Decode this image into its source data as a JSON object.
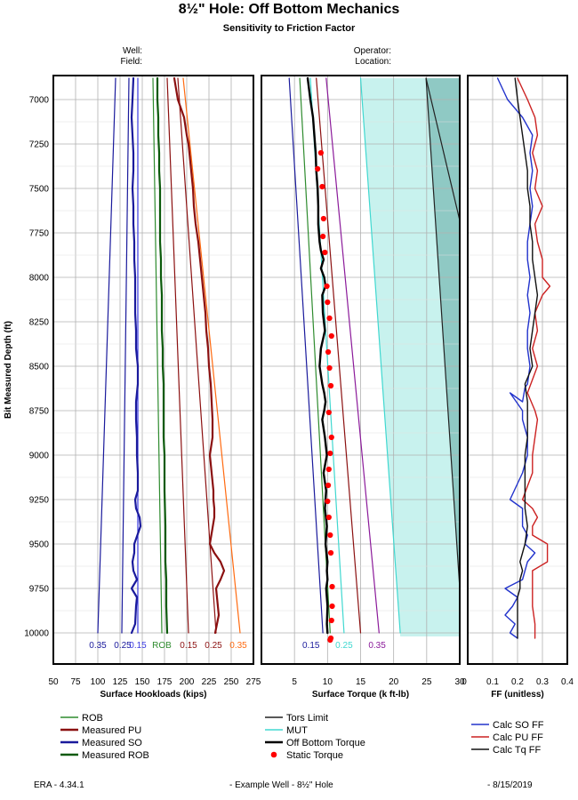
{
  "title": "8½\" Hole: Off Bottom Mechanics",
  "subtitle": "Sensitivity to Friction Factor",
  "header": {
    "well_label": "Well:",
    "field_label": "Field:",
    "operator_label": "Operator:",
    "location_label": "Location:"
  },
  "footer": {
    "left": "ERA - 4.34.1",
    "center": "- Example Well - 8½\" Hole",
    "right": "- 8/15/2019"
  },
  "colors": {
    "rob": "#2e8b2e",
    "measured_pu": "#8b1010",
    "measured_so": "#1a1a9c",
    "measured_rob": "#0b5a0b",
    "tors_limit": "#222222",
    "mut": "#40d8d0",
    "mut_fill": "#c8f2ee",
    "tors_fill": "#8fc9c4",
    "off_bottom_torque": "#000000",
    "static_torque": "#ff0000",
    "calc_so_ff": "#2233cc",
    "calc_pu_ff": "#cc2222",
    "calc_tq_ff": "#111111",
    "purple": "#8b1a9a",
    "orange": "#ff6a10",
    "lightblue_ff": "#3a3ae0"
  },
  "chart_data": [
    {
      "type": "line",
      "panel": "hookload",
      "xlabel": "Surface Hookloads (kips)",
      "ylabel": "Bit Measured Depth (ft)",
      "xlim": [
        50,
        275
      ],
      "ylim": [
        6880,
        10080
      ],
      "xticks": [
        "50",
        "75",
        "100",
        "125",
        "150",
        "175",
        "200",
        "225",
        "250",
        "275"
      ],
      "yticks": [
        "7000",
        "7250",
        "7500",
        "7750",
        "8000",
        "8250",
        "8500",
        "8750",
        "9000",
        "9250",
        "9500",
        "9750",
        "10000"
      ],
      "grid": true,
      "curve_labels": [
        {
          "text": "0.35",
          "x": 100,
          "color": "measured_so"
        },
        {
          "text": "0.25",
          "x": 128,
          "color": "measured_so"
        },
        {
          "text": "0.15",
          "x": 145,
          "color": "lightblue_ff"
        },
        {
          "text": "ROB",
          "x": 172,
          "color": "rob"
        },
        {
          "text": "0.15",
          "x": 202,
          "color": "measured_pu"
        },
        {
          "text": "0.25",
          "x": 230,
          "color": "measured_pu"
        },
        {
          "text": "0.35",
          "x": 258,
          "color": "orange"
        }
      ],
      "series": [
        {
          "key": "so_035",
          "color": "measured_so",
          "width": 1.2,
          "x": [
            120,
            100
          ],
          "y": [
            6880,
            10000
          ]
        },
        {
          "key": "so_025",
          "color": "measured_so",
          "width": 1.2,
          "x": [
            135,
            127
          ],
          "y": [
            6880,
            10000
          ]
        },
        {
          "key": "so_015",
          "color": "lightblue_ff",
          "width": 1.2,
          "x": [
            145,
            145
          ],
          "y": [
            6880,
            10000
          ]
        },
        {
          "key": "rob",
          "color": "rob",
          "width": 1.2,
          "x": [
            162,
            172
          ],
          "y": [
            6880,
            10000
          ]
        },
        {
          "key": "pu_015",
          "color": "measured_pu",
          "width": 1.2,
          "x": [
            178,
            202
          ],
          "y": [
            6880,
            10000
          ]
        },
        {
          "key": "pu_025",
          "color": "measured_pu",
          "width": 1.2,
          "x": [
            190,
            233
          ],
          "y": [
            6880,
            10000
          ]
        },
        {
          "key": "pu_035",
          "color": "orange",
          "width": 1.2,
          "x": [
            196,
            260
          ],
          "y": [
            6880,
            10000
          ]
        },
        {
          "key": "measured_so",
          "color": "measured_so",
          "width": 2.2,
          "x": [
            140,
            139,
            138,
            139,
            140,
            140,
            139,
            140,
            140,
            141,
            141,
            142,
            142,
            142,
            143,
            143,
            145,
            145,
            143,
            143,
            144,
            144,
            145,
            145,
            142,
            143,
            147,
            148,
            141,
            141,
            139,
            140,
            144,
            138,
            144,
            143,
            142,
            138
          ],
          "y": [
            6880,
            7000,
            7100,
            7200,
            7300,
            7400,
            7500,
            7600,
            7700,
            7800,
            7900,
            8000,
            8100,
            8200,
            8300,
            8400,
            8500,
            8600,
            8700,
            8800,
            8900,
            9000,
            9100,
            9200,
            9250,
            9300,
            9350,
            9400,
            9500,
            9550,
            9600,
            9650,
            9700,
            9750,
            9800,
            9850,
            9950,
            10000
          ]
        },
        {
          "key": "measured_rob",
          "color": "measured_rob",
          "width": 2.2,
          "x": [
            167,
            167,
            168,
            168,
            169,
            169,
            170,
            170,
            170,
            170,
            171,
            171,
            172,
            172,
            172,
            173,
            173,
            174,
            174,
            174,
            174,
            175,
            175,
            175,
            176,
            176,
            176,
            177,
            177,
            178
          ],
          "y": [
            6880,
            7000,
            7100,
            7200,
            7300,
            7400,
            7500,
            7600,
            7700,
            7800,
            7900,
            8000,
            8100,
            8200,
            8300,
            8400,
            8500,
            8600,
            8700,
            8800,
            8900,
            9000,
            9100,
            9200,
            9400,
            9500,
            9600,
            9700,
            9850,
            10000
          ]
        },
        {
          "key": "measured_pu",
          "color": "measured_pu",
          "width": 2.2,
          "x": [
            186,
            190,
            197,
            200,
            202,
            203,
            205,
            207,
            208,
            210,
            213,
            215,
            217,
            219,
            221,
            222,
            224,
            225,
            227,
            228,
            229,
            229,
            226,
            228,
            230,
            230,
            231,
            231,
            226,
            231,
            238,
            242,
            238,
            233,
            234,
            236,
            232
          ],
          "y": [
            6880,
            7000,
            7100,
            7200,
            7250,
            7300,
            7400,
            7500,
            7600,
            7700,
            7800,
            7900,
            8000,
            8100,
            8200,
            8300,
            8400,
            8500,
            8600,
            8700,
            8800,
            8900,
            9000,
            9100,
            9200,
            9250,
            9300,
            9350,
            9500,
            9550,
            9600,
            9650,
            9700,
            9750,
            9800,
            9900,
            10000
          ]
        }
      ]
    },
    {
      "type": "line",
      "panel": "torque",
      "xlabel": "Surface Torque (k ft-lb)",
      "xlim": [
        0,
        30
      ],
      "ylim": [
        6880,
        10080
      ],
      "xticks": [
        "5",
        "10",
        "15",
        "20",
        "25",
        "30"
      ],
      "grid": true,
      "curve_labels": [
        {
          "text": "0.15",
          "x": 7.5,
          "color": "measured_so"
        },
        {
          "text": "0.25",
          "x": 12.5,
          "color": "mut"
        },
        {
          "text": "0.35",
          "x": 17.5,
          "color": "purple"
        }
      ],
      "series": [
        {
          "key": "tq_blue",
          "color": "measured_so",
          "width": 1.2,
          "x": [
            4.2,
            9.3
          ],
          "y": [
            6880,
            10000
          ]
        },
        {
          "key": "tq_green",
          "color": "rob",
          "width": 1.2,
          "x": [
            5.8,
            10.4
          ],
          "y": [
            6880,
            10000
          ]
        },
        {
          "key": "tq_cyan",
          "color": "mut",
          "width": 1.2,
          "x": [
            7.4,
            12.5
          ],
          "y": [
            6880,
            10000
          ]
        },
        {
          "key": "tq_red",
          "color": "measured_pu",
          "width": 1.2,
          "x": [
            8.3,
            15.0
          ],
          "y": [
            6880,
            10000
          ]
        },
        {
          "key": "tq_purple",
          "color": "purple",
          "width": 1.2,
          "x": [
            9.8,
            17.8
          ],
          "y": [
            6880,
            10000
          ]
        },
        {
          "key": "mut_line",
          "color": "mut",
          "width": 1.2,
          "x": [
            15.0,
            21.0
          ],
          "y": [
            6880,
            10000
          ]
        },
        {
          "key": "tors_a",
          "color": "tors_limit",
          "width": 1.2,
          "x": [
            24.9,
            30.0
          ],
          "y": [
            6880,
            7680
          ]
        },
        {
          "key": "tors_b",
          "color": "tors_limit",
          "width": 1.2,
          "x": [
            24.9,
            30.0
          ],
          "y": [
            6880,
            9750
          ]
        },
        {
          "key": "off_bottom_torque",
          "color": "off_bottom_torque",
          "width": 2.4,
          "x": [
            7.0,
            7.4,
            7.8,
            8.0,
            8.2,
            8.3,
            8.5,
            8.6,
            8.6,
            8.8,
            9.0,
            9.4,
            9.0,
            9.5,
            9.7,
            9.2,
            9.3,
            9.6,
            9.0,
            8.8,
            9.2,
            9.5,
            9.7,
            9.5,
            9.2,
            9.6,
            9.9,
            9.4,
            9.8,
            9.6,
            9.9,
            9.7,
            10.0,
            9.9,
            10.0,
            9.8,
            10.0,
            9.9,
            10.0
          ],
          "y": [
            6880,
            7000,
            7100,
            7200,
            7300,
            7400,
            7500,
            7600,
            7700,
            7800,
            7850,
            7900,
            7950,
            8000,
            8050,
            8100,
            8200,
            8300,
            8400,
            8500,
            8600,
            8650,
            8700,
            8750,
            8800,
            8900,
            9000,
            9100,
            9200,
            9300,
            9400,
            9500,
            9600,
            9650,
            9700,
            9750,
            9850,
            9950,
            10000
          ]
        },
        {
          "key": "static_torque",
          "color": "static_torque",
          "mode": "markers",
          "x": [
            9.0,
            8.5,
            9.2,
            9.4,
            9.3,
            9.6,
            9.9,
            10.0,
            10.3,
            10.6,
            10.1,
            10.3,
            10.5,
            10.2,
            10.6,
            10.4,
            10.2,
            10.1,
            10.0,
            10.2,
            10.4,
            10.5,
            10.7,
            10.7,
            10.6,
            10.5,
            10.4
          ],
          "y": [
            7300,
            7390,
            7490,
            7670,
            7770,
            7860,
            8050,
            8140,
            8230,
            8330,
            8420,
            8510,
            8610,
            8760,
            8900,
            8990,
            9080,
            9170,
            9260,
            9350,
            9450,
            9550,
            9740,
            9850,
            9930,
            10030,
            10040
          ]
        }
      ]
    },
    {
      "type": "line",
      "panel": "ff",
      "xlabel": "FF (unitless)",
      "xlim": [
        0,
        0.4
      ],
      "ylim": [
        6880,
        10080
      ],
      "xticks": [
        "0.1",
        "0.2",
        "0.3",
        "0.4"
      ],
      "xtick_zero": "0",
      "grid": true,
      "series": [
        {
          "key": "calc_so_ff",
          "color": "calc_so_ff",
          "width": 1.4,
          "x": [
            0.12,
            0.16,
            0.22,
            0.26,
            0.25,
            0.26,
            0.25,
            0.26,
            0.25,
            0.24,
            0.24,
            0.25,
            0.24,
            0.25,
            0.24,
            0.24,
            0.25,
            0.24,
            0.23,
            0.22,
            0.17,
            0.22,
            0.22,
            0.24,
            0.24,
            0.22,
            0.17,
            0.22,
            0.22,
            0.24,
            0.23,
            0.27,
            0.24,
            0.22,
            0.15,
            0.2,
            0.18,
            0.15,
            0.19,
            0.17,
            0.2
          ],
          "y": [
            6880,
            7000,
            7100,
            7200,
            7300,
            7400,
            7500,
            7600,
            7700,
            7800,
            7900,
            8000,
            8100,
            8200,
            8300,
            8400,
            8500,
            8600,
            8620,
            8700,
            8650,
            8750,
            8800,
            8900,
            9000,
            9100,
            9250,
            9300,
            9400,
            9450,
            9500,
            9550,
            9600,
            9700,
            9750,
            9800,
            9850,
            9900,
            9950,
            10000,
            10030
          ]
        },
        {
          "key": "calc_pu_ff",
          "color": "calc_pu_ff",
          "width": 1.4,
          "x": [
            0.2,
            0.24,
            0.27,
            0.28,
            0.26,
            0.28,
            0.27,
            0.3,
            0.27,
            0.28,
            0.3,
            0.3,
            0.33,
            0.3,
            0.27,
            0.28,
            0.26,
            0.28,
            0.24,
            0.27,
            0.28,
            0.27,
            0.26,
            0.26,
            0.22,
            0.26,
            0.28,
            0.26,
            0.26,
            0.32,
            0.32,
            0.26,
            0.26,
            0.26,
            0.27,
            0.27
          ],
          "y": [
            6880,
            7000,
            7100,
            7200,
            7300,
            7400,
            7500,
            7600,
            7700,
            7800,
            7900,
            8000,
            8050,
            8100,
            8200,
            8300,
            8400,
            8500,
            8650,
            8750,
            8800,
            8900,
            9000,
            9100,
            9250,
            9300,
            9350,
            9400,
            9450,
            9500,
            9600,
            9650,
            9750,
            9850,
            9950,
            10030
          ]
        },
        {
          "key": "calc_tq_ff",
          "color": "calc_tq_ff",
          "width": 1.4,
          "x": [
            0.19,
            0.2,
            0.21,
            0.22,
            0.23,
            0.24,
            0.24,
            0.25,
            0.25,
            0.26,
            0.26,
            0.27,
            0.28,
            0.27,
            0.26,
            0.25,
            0.26,
            0.23,
            0.24,
            0.24,
            0.24,
            0.23,
            0.23,
            0.23,
            0.23,
            0.24,
            0.23,
            0.22,
            0.21,
            0.22,
            0.21,
            0.21,
            0.2,
            0.2,
            0.2,
            0.2,
            0.2
          ],
          "y": [
            6880,
            7000,
            7100,
            7200,
            7300,
            7400,
            7500,
            7600,
            7700,
            7800,
            7900,
            8000,
            8100,
            8200,
            8300,
            8400,
            8500,
            8600,
            8700,
            8800,
            8900,
            9000,
            9100,
            9200,
            9300,
            9400,
            9500,
            9550,
            9600,
            9650,
            9700,
            9750,
            9800,
            9850,
            9900,
            9950,
            10030
          ]
        }
      ]
    }
  ],
  "legend": {
    "col1": [
      {
        "label": "ROB",
        "color": "rob",
        "style": "line"
      },
      {
        "label": "Measured PU",
        "color": "measured_pu",
        "style": "thick"
      },
      {
        "label": "Measured SO",
        "color": "measured_so",
        "style": "thick"
      },
      {
        "label": "Measured ROB",
        "color": "measured_rob",
        "style": "thick"
      }
    ],
    "col2": [
      {
        "label": "Tors Limit",
        "color": "tors_limit",
        "style": "line"
      },
      {
        "label": "MUT",
        "color": "mut",
        "style": "line"
      },
      {
        "label": "Off Bottom Torque",
        "color": "off_bottom_torque",
        "style": "thick"
      },
      {
        "label": "Static Torque",
        "color": "static_torque",
        "style": "dot"
      }
    ],
    "col3": [
      {
        "label": "Calc SO FF",
        "color": "calc_so_ff",
        "style": "line"
      },
      {
        "label": "Calc PU FF",
        "color": "calc_pu_ff",
        "style": "line"
      },
      {
        "label": "Calc Tq FF",
        "color": "calc_tq_ff",
        "style": "line"
      }
    ]
  }
}
